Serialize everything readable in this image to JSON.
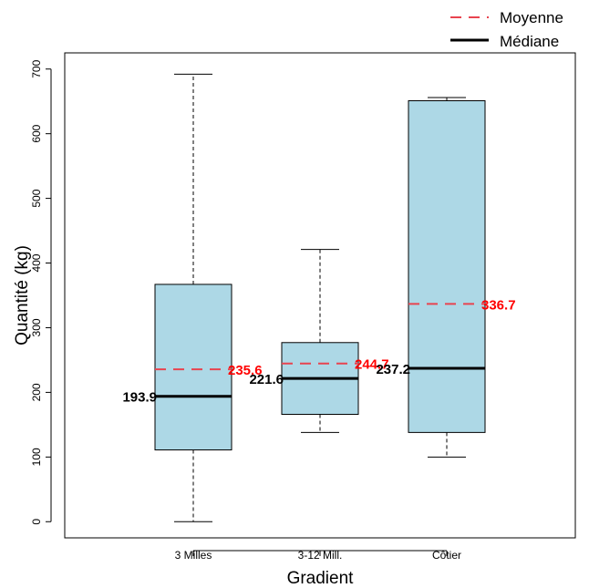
{
  "chart_data": {
    "type": "boxplot",
    "xlabel": "Gradient",
    "ylabel": "Quantité (kg)",
    "ylim": [
      -25,
      725
    ],
    "yticks": [
      0,
      100,
      200,
      300,
      400,
      500,
      600,
      700
    ],
    "categories": [
      "3 Milles",
      "3-12 Mill.",
      "Côtier"
    ],
    "boxes": [
      {
        "category": "3 Milles",
        "whisker_low": 0,
        "q1": 111,
        "median": 193.9,
        "q3": 367,
        "whisker_high": 692,
        "mean": 235.6,
        "median_label": "193.9",
        "mean_label": "235.6"
      },
      {
        "category": "3-12 Mill.",
        "whisker_low": 138,
        "q1": 166,
        "median": 221.6,
        "q3": 277,
        "whisker_high": 421,
        "mean": 244.7,
        "median_label": "221.6",
        "mean_label": "244.7"
      },
      {
        "category": "Côtier",
        "whisker_low": 100,
        "q1": 138,
        "median": 237.2,
        "q3": 651,
        "whisker_high": 656,
        "mean": 336.7,
        "median_label": "237.2",
        "mean_label": "336.7"
      }
    ],
    "legend": {
      "position": "top-right",
      "entries": [
        {
          "label": "Moyenne",
          "style": "dashed",
          "color": "#e8434f"
        },
        {
          "label": "Médiane",
          "style": "solid",
          "color": "#000000"
        }
      ]
    },
    "colors": {
      "box_fill": "#add8e6",
      "mean_line": "#e8434f",
      "mean_text": "#ff0000",
      "median_line": "#000000"
    },
    "grid": false
  }
}
